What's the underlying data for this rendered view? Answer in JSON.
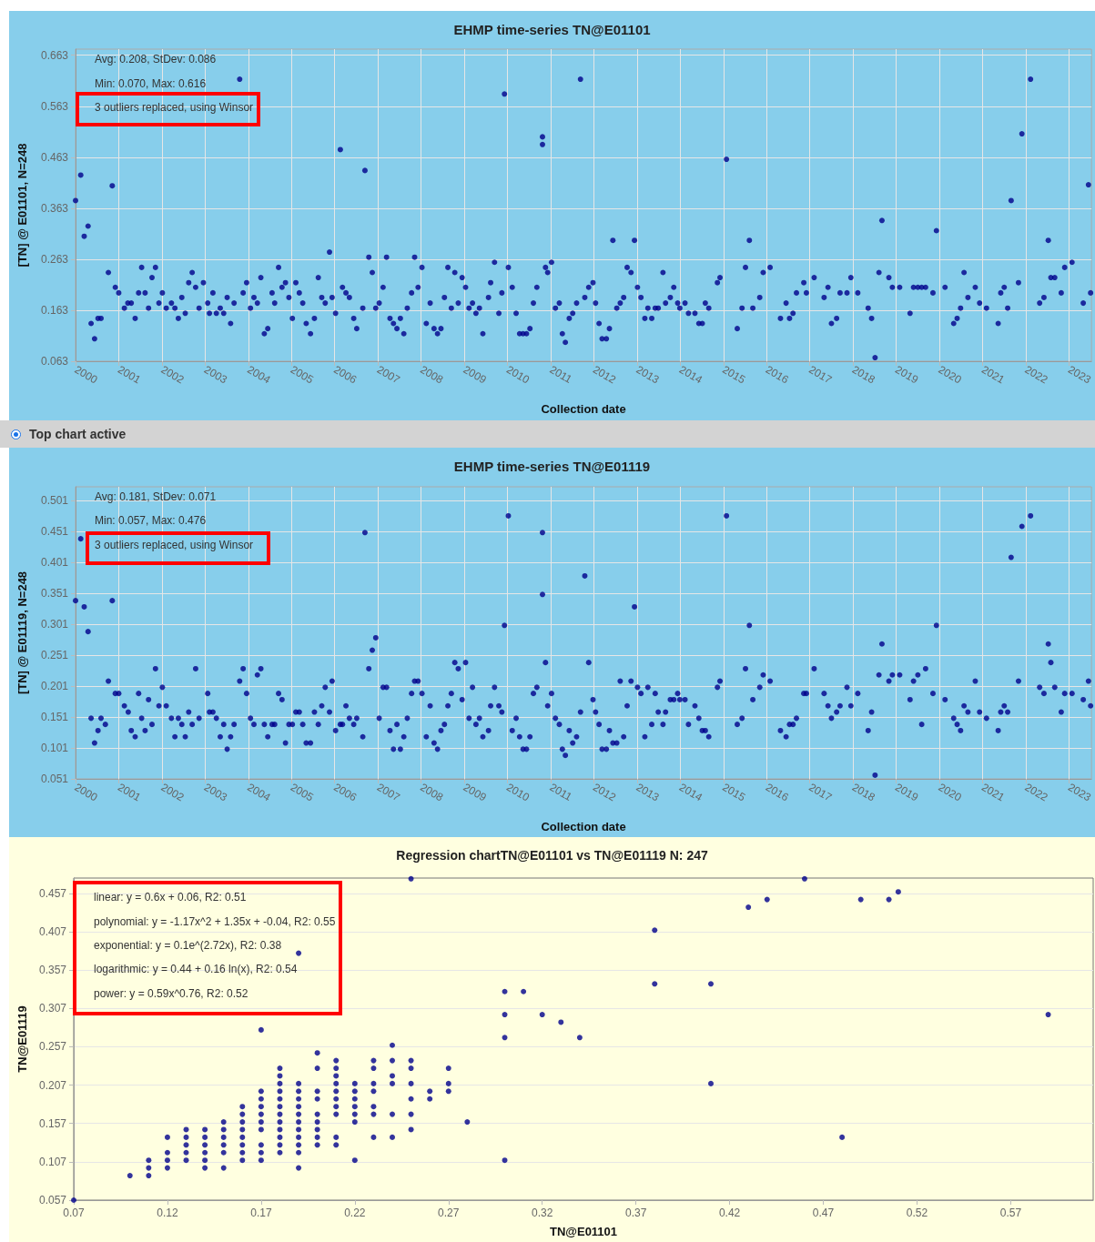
{
  "chart_data": [
    {
      "type": "scatter",
      "title": "EHMP time-series TN@E01101",
      "xlabel": "Collection date",
      "ylabel": "[TN] @ E01101, N=248",
      "marker": "circle",
      "grid": true,
      "xlim": [
        2000,
        2023.52
      ],
      "ylim": [
        0.063,
        0.675
      ],
      "xticks": [
        2000,
        2001,
        2002,
        2003,
        2004,
        2005,
        2006,
        2007,
        2008,
        2009,
        2010,
        2011,
        2012,
        2013,
        2014,
        2015,
        2016,
        2017,
        2018,
        2019,
        2020,
        2021,
        2022,
        2023
      ],
      "yticks": [
        0.063,
        0.163,
        0.263,
        0.363,
        0.463,
        0.563,
        0.663
      ],
      "annotations": [
        "Avg: 0.208, StDev: 0.086",
        "Min: 0.070, Max: 0.616",
        "3 outliers replaced, using Winsor",
        "Top chart active"
      ],
      "x": [
        2000,
        2000.12,
        2000.2,
        2000.29,
        2000.36,
        2000.44,
        2000.52,
        2000.59,
        2000.76,
        2000.85,
        2000.92,
        2001,
        2001.13,
        2001.21,
        2001.29,
        2001.38,
        2001.46,
        2001.53,
        2001.61,
        2001.69,
        2001.77,
        2001.85,
        2001.93,
        2002.01,
        2002.1,
        2002.22,
        2002.3,
        2002.38,
        2002.46,
        2002.54,
        2002.62,
        2002.7,
        2002.78,
        2002.86,
        2002.96,
        2003.06,
        2003.1,
        2003.18,
        2003.26,
        2003.35,
        2003.43,
        2003.51,
        2003.59,
        2003.67,
        2003.8,
        2003.88,
        2003.96,
        2004.05,
        2004.13,
        2004.21,
        2004.29,
        2004.37,
        2004.45,
        2004.55,
        2004.61,
        2004.7,
        2004.78,
        2004.86,
        2004.94,
        2005.02,
        2005.1,
        2005.18,
        2005.26,
        2005.34,
        2005.44,
        2005.53,
        2005.62,
        2005.7,
        2005.78,
        2005.88,
        2005.94,
        2006.02,
        2006.13,
        2006.18,
        2006.26,
        2006.34,
        2006.44,
        2006.51,
        2006.65,
        2006.7,
        2006.79,
        2006.87,
        2006.95,
        2007.03,
        2007.12,
        2007.2,
        2007.28,
        2007.36,
        2007.44,
        2007.52,
        2007.6,
        2007.68,
        2007.78,
        2007.85,
        2007.93,
        2008.02,
        2008.12,
        2008.21,
        2008.3,
        2008.38,
        2008.46,
        2008.54,
        2008.62,
        2008.7,
        2008.78,
        2008.86,
        2008.95,
        2009.03,
        2009.11,
        2009.19,
        2009.27,
        2009.35,
        2009.43,
        2009.56,
        2009.61,
        2009.7,
        2009.8,
        2009.87,
        2009.93,
        2010.02,
        2010.11,
        2010.2,
        2010.28,
        2010.36,
        2010.44,
        2010.52,
        2010.6,
        2010.68,
        2010.81,
        2010.81,
        2010.88,
        2010.93,
        2011.02,
        2011.11,
        2011.2,
        2011.27,
        2011.34,
        2011.43,
        2011.51,
        2011.6,
        2011.69,
        2011.79,
        2011.88,
        2011.98,
        2012.04,
        2012.12,
        2012.19,
        2012.29,
        2012.36,
        2012.44,
        2012.53,
        2012.61,
        2012.69,
        2012.77,
        2012.86,
        2012.94,
        2013.01,
        2013.09,
        2013.18,
        2013.25,
        2013.34,
        2013.42,
        2013.49,
        2013.6,
        2013.66,
        2013.77,
        2013.85,
        2013.94,
        2013.99,
        2014.11,
        2014.19,
        2014.34,
        2014.43,
        2014.51,
        2014.58,
        2014.66,
        2014.86,
        2014.92,
        2015.07,
        2015.32,
        2015.43,
        2015.51,
        2015.6,
        2015.68,
        2015.84,
        2015.92,
        2016.08,
        2016.32,
        2016.45,
        2016.53,
        2016.61,
        2016.69,
        2016.86,
        2016.92,
        2017.1,
        2017.33,
        2017.42,
        2017.5,
        2017.62,
        2017.7,
        2017.86,
        2017.95,
        2018.11,
        2018.35,
        2018.43,
        2018.51,
        2018.6,
        2018.67,
        2018.83,
        2018.91,
        2019.08,
        2019.32,
        2019.4,
        2019.5,
        2019.59,
        2019.68,
        2019.85,
        2019.93,
        2020.13,
        2020.33,
        2020.41,
        2020.49,
        2020.57,
        2020.66,
        2020.83,
        2020.93,
        2021.09,
        2021.36,
        2021.42,
        2021.5,
        2021.58,
        2021.66,
        2021.83,
        2021.91,
        2022.11,
        2022.32,
        2022.42,
        2022.52,
        2022.58,
        2022.67,
        2022.82,
        2022.9,
        2023.07,
        2023.33,
        2023.45,
        2023.5
      ],
      "series": [
        {
          "color": "#00008b",
          "values": [
            0.378,
            0.428,
            0.308,
            0.328,
            0.137,
            0.107,
            0.147,
            0.147,
            0.237,
            0.407,
            0.208,
            0.197,
            0.167,
            0.177,
            0.177,
            0.147,
            0.197,
            0.247,
            0.197,
            0.167,
            0.227,
            0.247,
            0.177,
            0.197,
            0.167,
            0.177,
            0.167,
            0.147,
            0.188,
            0.157,
            0.217,
            0.237,
            0.208,
            0.167,
            0.217,
            0.177,
            0.157,
            0.197,
            0.157,
            0.167,
            0.157,
            0.188,
            0.137,
            0.177,
            0.616,
            0.197,
            0.217,
            0.167,
            0.188,
            0.177,
            0.227,
            0.117,
            0.127,
            0.197,
            0.177,
            0.247,
            0.208,
            0.217,
            0.188,
            0.147,
            0.217,
            0.197,
            0.177,
            0.137,
            0.117,
            0.147,
            0.227,
            0.188,
            0.177,
            0.277,
            0.188,
            0.157,
            0.478,
            0.208,
            0.197,
            0.188,
            0.147,
            0.127,
            0.167,
            0.437,
            0.267,
            0.237,
            0.167,
            0.177,
            0.208,
            0.267,
            0.147,
            0.137,
            0.127,
            0.147,
            0.117,
            0.167,
            0.197,
            0.267,
            0.208,
            0.247,
            0.137,
            0.177,
            0.127,
            0.117,
            0.127,
            0.188,
            0.247,
            0.167,
            0.237,
            0.177,
            0.227,
            0.208,
            0.167,
            0.177,
            0.157,
            0.167,
            0.117,
            0.188,
            0.217,
            0.257,
            0.157,
            0.197,
            0.587,
            0.247,
            0.208,
            0.157,
            0.117,
            0.117,
            0.117,
            0.127,
            0.177,
            0.208,
            0.503,
            0.488,
            0.247,
            0.237,
            0.257,
            0.167,
            0.177,
            0.117,
            0.1,
            0.147,
            0.157,
            0.177,
            0.616,
            0.188,
            0.208,
            0.217,
            0.177,
            0.137,
            0.107,
            0.107,
            0.127,
            0.3,
            0.167,
            0.177,
            0.188,
            0.247,
            0.237,
            0.3,
            0.208,
            0.188,
            0.147,
            0.167,
            0.147,
            0.167,
            0.167,
            0.237,
            0.177,
            0.188,
            0.208,
            0.177,
            0.167,
            0.177,
            0.157,
            0.157,
            0.137,
            0.137,
            0.177,
            0.167,
            0.217,
            0.227,
            0.459,
            0.127,
            0.167,
            0.247,
            0.3,
            0.167,
            0.188,
            0.237,
            0.247,
            0.147,
            0.177,
            0.147,
            0.157,
            0.197,
            0.217,
            0.197,
            0.227,
            0.188,
            0.208,
            0.137,
            0.147,
            0.197,
            0.197,
            0.227,
            0.197,
            0.167,
            0.147,
            0.07,
            0.237,
            0.339,
            0.227,
            0.208,
            0.208,
            0.157,
            0.208,
            0.208,
            0.208,
            0.208,
            0.197,
            0.319,
            0.208,
            0.137,
            0.147,
            0.167,
            0.237,
            0.188,
            0.208,
            0.177,
            0.167,
            0.137,
            0.197,
            0.208,
            0.167,
            0.378,
            0.217,
            0.509,
            0.616,
            0.177,
            0.188,
            0.3,
            0.227,
            0.227,
            0.197,
            0.247,
            0.257,
            0.177,
            0.409,
            0.197
          ]
        }
      ]
    },
    {
      "type": "scatter",
      "title": "EHMP time-series TN@E01119",
      "xlabel": "Collection date",
      "ylabel": "[TN] @ E01119, N=248",
      "marker": "circle",
      "grid": true,
      "xlim": [
        2000,
        2023.52
      ],
      "ylim": [
        0.051,
        0.523
      ],
      "xticks": [
        2000,
        2001,
        2002,
        2003,
        2004,
        2005,
        2006,
        2007,
        2008,
        2009,
        2010,
        2011,
        2012,
        2013,
        2014,
        2015,
        2016,
        2017,
        2018,
        2019,
        2020,
        2021,
        2022,
        2023
      ],
      "yticks": [
        0.051,
        0.101,
        0.151,
        0.201,
        0.251,
        0.301,
        0.351,
        0.401,
        0.451,
        0.501
      ],
      "annotations": [
        "Avg: 0.181, StDev: 0.071",
        "Min: 0.057, Max: 0.476",
        "3 outliers replaced, using Winsor"
      ],
      "x": [
        2000,
        2000.12,
        2000.2,
        2000.29,
        2000.36,
        2000.44,
        2000.52,
        2000.59,
        2000.69,
        2000.76,
        2000.85,
        2000.92,
        2001,
        2001.13,
        2001.22,
        2001.29,
        2001.38,
        2001.46,
        2001.53,
        2001.61,
        2001.69,
        2001.77,
        2001.85,
        2001.93,
        2002.01,
        2002.1,
        2002.22,
        2002.3,
        2002.38,
        2002.46,
        2002.54,
        2002.62,
        2002.7,
        2002.78,
        2002.86,
        2003.06,
        2003.1,
        2003.18,
        2003.26,
        2003.35,
        2003.43,
        2003.51,
        2003.59,
        2003.67,
        2003.8,
        2003.88,
        2003.96,
        2004.05,
        2004.13,
        2004.21,
        2004.29,
        2004.37,
        2004.45,
        2004.55,
        2004.61,
        2004.7,
        2004.78,
        2004.86,
        2004.94,
        2005.02,
        2005.1,
        2005.18,
        2005.26,
        2005.34,
        2005.44,
        2005.53,
        2005.62,
        2005.7,
        2005.78,
        2005.88,
        2005.94,
        2006.02,
        2006.13,
        2006.18,
        2006.26,
        2006.34,
        2006.44,
        2006.51,
        2006.65,
        2006.7,
        2006.79,
        2006.87,
        2006.95,
        2007.03,
        2007.12,
        2007.2,
        2007.28,
        2007.36,
        2007.44,
        2007.52,
        2007.6,
        2007.68,
        2007.78,
        2007.85,
        2007.93,
        2008.02,
        2008.12,
        2008.21,
        2008.3,
        2008.38,
        2008.46,
        2008.54,
        2008.62,
        2008.7,
        2008.78,
        2008.86,
        2008.95,
        2009.03,
        2009.11,
        2009.19,
        2009.27,
        2009.35,
        2009.43,
        2009.56,
        2009.61,
        2009.7,
        2009.8,
        2009.87,
        2009.93,
        2010.02,
        2010.11,
        2010.2,
        2010.28,
        2010.36,
        2010.44,
        2010.52,
        2010.6,
        2010.68,
        2010.81,
        2010.81,
        2010.88,
        2010.93,
        2011.02,
        2011.11,
        2011.2,
        2011.27,
        2011.34,
        2011.43,
        2011.51,
        2011.6,
        2011.69,
        2011.79,
        2011.88,
        2011.98,
        2012.04,
        2012.12,
        2012.19,
        2012.29,
        2012.36,
        2012.44,
        2012.53,
        2012.61,
        2012.69,
        2012.77,
        2012.86,
        2012.94,
        2013.01,
        2013.09,
        2013.18,
        2013.25,
        2013.34,
        2013.42,
        2013.49,
        2013.6,
        2013.66,
        2013.77,
        2013.85,
        2013.94,
        2013.99,
        2014.11,
        2014.19,
        2014.34,
        2014.43,
        2014.51,
        2014.58,
        2014.66,
        2014.86,
        2014.92,
        2015.07,
        2015.32,
        2015.43,
        2015.51,
        2015.6,
        2015.68,
        2015.84,
        2015.92,
        2016.08,
        2016.32,
        2016.45,
        2016.53,
        2016.61,
        2016.69,
        2016.86,
        2016.92,
        2017.1,
        2017.33,
        2017.42,
        2017.5,
        2017.62,
        2017.7,
        2017.86,
        2017.95,
        2018.11,
        2018.35,
        2018.43,
        2018.51,
        2018.6,
        2018.67,
        2018.83,
        2018.91,
        2019.08,
        2019.32,
        2019.4,
        2019.5,
        2019.59,
        2019.68,
        2019.85,
        2019.93,
        2020.13,
        2020.33,
        2020.41,
        2020.49,
        2020.57,
        2020.66,
        2020.83,
        2020.93,
        2021.09,
        2021.36,
        2021.42,
        2021.5,
        2021.58,
        2021.66,
        2021.83,
        2021.91,
        2022.11,
        2022.32,
        2022.42,
        2022.52,
        2022.58,
        2022.67,
        2022.82,
        2022.9,
        2023.07,
        2023.33,
        2023.45,
        2023.5
      ],
      "series": [
        {
          "color": "#00008b",
          "values": [
            0.339,
            0.439,
            0.329,
            0.289,
            0.149,
            0.109,
            0.129,
            0.149,
            0.139,
            0.209,
            0.339,
            0.189,
            0.189,
            0.169,
            0.159,
            0.129,
            0.119,
            0.189,
            0.149,
            0.129,
            0.179,
            0.139,
            0.229,
            0.169,
            0.199,
            0.169,
            0.149,
            0.119,
            0.149,
            0.139,
            0.119,
            0.159,
            0.139,
            0.229,
            0.149,
            0.189,
            0.159,
            0.159,
            0.149,
            0.119,
            0.139,
            0.099,
            0.119,
            0.139,
            0.209,
            0.229,
            0.189,
            0.149,
            0.139,
            0.219,
            0.229,
            0.139,
            0.119,
            0.139,
            0.139,
            0.189,
            0.179,
            0.109,
            0.139,
            0.139,
            0.159,
            0.159,
            0.139,
            0.109,
            0.109,
            0.159,
            0.139,
            0.169,
            0.199,
            0.159,
            0.209,
            0.129,
            0.139,
            0.139,
            0.169,
            0.149,
            0.139,
            0.149,
            0.119,
            0.449,
            0.229,
            0.259,
            0.279,
            0.149,
            0.199,
            0.199,
            0.129,
            0.099,
            0.139,
            0.099,
            0.119,
            0.149,
            0.189,
            0.209,
            0.209,
            0.189,
            0.119,
            0.169,
            0.109,
            0.099,
            0.129,
            0.139,
            0.169,
            0.189,
            0.239,
            0.229,
            0.179,
            0.239,
            0.149,
            0.199,
            0.139,
            0.149,
            0.119,
            0.129,
            0.169,
            0.199,
            0.169,
            0.159,
            0.299,
            0.476,
            0.129,
            0.149,
            0.119,
            0.099,
            0.099,
            0.119,
            0.189,
            0.199,
            0.449,
            0.349,
            0.239,
            0.169,
            0.189,
            0.149,
            0.139,
            0.099,
            0.089,
            0.129,
            0.109,
            0.119,
            0.159,
            0.379,
            0.239,
            0.179,
            0.159,
            0.139,
            0.099,
            0.099,
            0.129,
            0.109,
            0.109,
            0.209,
            0.119,
            0.169,
            0.209,
            0.329,
            0.199,
            0.189,
            0.119,
            0.199,
            0.139,
            0.189,
            0.159,
            0.139,
            0.159,
            0.179,
            0.179,
            0.189,
            0.179,
            0.179,
            0.139,
            0.169,
            0.149,
            0.129,
            0.129,
            0.119,
            0.199,
            0.209,
            0.476,
            0.139,
            0.149,
            0.229,
            0.299,
            0.179,
            0.199,
            0.219,
            0.209,
            0.129,
            0.119,
            0.139,
            0.139,
            0.149,
            0.189,
            0.189,
            0.229,
            0.189,
            0.169,
            0.149,
            0.159,
            0.169,
            0.199,
            0.169,
            0.189,
            0.129,
            0.159,
            0.057,
            0.219,
            0.269,
            0.209,
            0.219,
            0.219,
            0.179,
            0.209,
            0.219,
            0.139,
            0.229,
            0.189,
            0.299,
            0.179,
            0.149,
            0.139,
            0.129,
            0.169,
            0.159,
            0.209,
            0.159,
            0.149,
            0.129,
            0.159,
            0.169,
            0.159,
            0.409,
            0.209,
            0.459,
            0.476,
            0.199,
            0.189,
            0.269,
            0.239,
            0.199,
            0.159,
            0.189,
            0.189,
            0.179,
            0.209,
            0.169
          ]
        }
      ]
    },
    {
      "type": "scatter",
      "title": "Regression chartTN@E01101 vs TN@E01119 N: 247",
      "xlabel": "TN@E01101",
      "ylabel": "TN@E01119",
      "marker": "circle",
      "grid": "y",
      "xlim": [
        0.07,
        0.614
      ],
      "ylim": [
        0.057,
        0.477
      ],
      "xticks": [
        0.07,
        0.12,
        0.17,
        0.22,
        0.27,
        0.32,
        0.37,
        0.42,
        0.47,
        0.52,
        0.57
      ],
      "yticks": [
        0.057,
        0.107,
        0.157,
        0.207,
        0.257,
        0.307,
        0.357,
        0.407,
        0.457
      ],
      "annotations": [
        "linear: y = 0.6x + 0.06, R2: 0.51",
        "polynomial: y = -1.17x^2 + 1.35x + -0.04, R2: 0.55",
        "exponential: y = 0.1e^(2.72x), R2: 0.38",
        "logarithmic: y = 0.44 + 0.16 ln(x), R2: 0.54",
        "power: y = 0.59x^0.76, R2: 0.52"
      ],
      "x": [
        0.07,
        0.1,
        0.11,
        0.11,
        0.11,
        0.12,
        0.12,
        0.12,
        0.12,
        0.13,
        0.13,
        0.13,
        0.13,
        0.13,
        0.14,
        0.14,
        0.14,
        0.14,
        0.14,
        0.14,
        0.15,
        0.15,
        0.15,
        0.15,
        0.15,
        0.15,
        0.16,
        0.16,
        0.16,
        0.16,
        0.16,
        0.16,
        0.16,
        0.16,
        0.17,
        0.17,
        0.17,
        0.17,
        0.17,
        0.17,
        0.17,
        0.17,
        0.17,
        0.17,
        0.18,
        0.18,
        0.18,
        0.18,
        0.18,
        0.18,
        0.18,
        0.18,
        0.18,
        0.18,
        0.18,
        0.18,
        0.19,
        0.19,
        0.19,
        0.19,
        0.19,
        0.19,
        0.19,
        0.19,
        0.19,
        0.19,
        0.19,
        0.19,
        0.2,
        0.2,
        0.2,
        0.2,
        0.2,
        0.2,
        0.2,
        0.2,
        0.2,
        0.21,
        0.21,
        0.21,
        0.21,
        0.21,
        0.21,
        0.21,
        0.21,
        0.21,
        0.21,
        0.22,
        0.22,
        0.22,
        0.22,
        0.22,
        0.22,
        0.22,
        0.23,
        0.23,
        0.23,
        0.23,
        0.23,
        0.23,
        0.23,
        0.24,
        0.24,
        0.24,
        0.24,
        0.24,
        0.24,
        0.25,
        0.25,
        0.25,
        0.25,
        0.25,
        0.25,
        0.25,
        0.26,
        0.26,
        0.27,
        0.27,
        0.27,
        0.28,
        0.3,
        0.3,
        0.3,
        0.3,
        0.31,
        0.32,
        0.33,
        0.34,
        0.38,
        0.38,
        0.41,
        0.41,
        0.43,
        0.44,
        0.46,
        0.48,
        0.49,
        0.505,
        0.51,
        0.59
      ],
      "series": [
        {
          "color": "#00008b",
          "values": [
            0.057,
            0.089,
            0.109,
            0.099,
            0.089,
            0.139,
            0.119,
            0.109,
            0.099,
            0.149,
            0.139,
            0.129,
            0.119,
            0.109,
            0.149,
            0.139,
            0.129,
            0.119,
            0.109,
            0.099,
            0.159,
            0.149,
            0.139,
            0.129,
            0.119,
            0.099,
            0.179,
            0.169,
            0.159,
            0.149,
            0.139,
            0.129,
            0.119,
            0.109,
            0.279,
            0.199,
            0.189,
            0.179,
            0.169,
            0.159,
            0.149,
            0.129,
            0.119,
            0.109,
            0.229,
            0.219,
            0.209,
            0.199,
            0.189,
            0.179,
            0.169,
            0.159,
            0.149,
            0.139,
            0.129,
            0.119,
            0.379,
            0.209,
            0.199,
            0.189,
            0.179,
            0.169,
            0.159,
            0.149,
            0.139,
            0.129,
            0.119,
            0.099,
            0.249,
            0.229,
            0.199,
            0.189,
            0.169,
            0.159,
            0.149,
            0.139,
            0.129,
            0.239,
            0.229,
            0.219,
            0.209,
            0.199,
            0.189,
            0.179,
            0.169,
            0.139,
            0.129,
            0.209,
            0.199,
            0.189,
            0.179,
            0.169,
            0.159,
            0.109,
            0.239,
            0.229,
            0.209,
            0.199,
            0.179,
            0.169,
            0.139,
            0.259,
            0.239,
            0.219,
            0.209,
            0.169,
            0.139,
            0.476,
            0.239,
            0.229,
            0.209,
            0.189,
            0.169,
            0.149,
            0.199,
            0.189,
            0.229,
            0.209,
            0.199,
            0.159,
            0.329,
            0.299,
            0.269,
            0.109,
            0.329,
            0.299,
            0.289,
            0.269,
            0.409,
            0.339,
            0.339,
            0.209,
            0.439,
            0.449,
            0.476,
            0.139,
            0.449,
            0.449,
            0.459,
            0.299
          ]
        }
      ]
    }
  ]
}
